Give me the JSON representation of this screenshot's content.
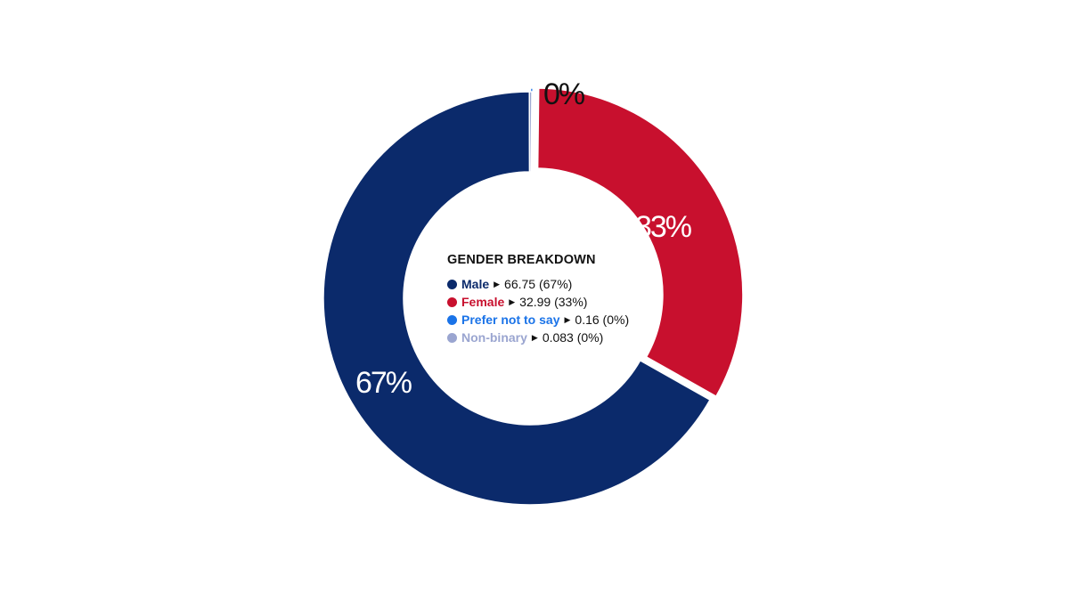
{
  "chart_data": {
    "type": "pie",
    "title": "GENDER BREAKDOWN",
    "categories": [
      "Male",
      "Female",
      "Prefer not to say",
      "Non-binary"
    ],
    "values": [
      66.75,
      32.99,
      0.16,
      0.083
    ],
    "percent_labels": [
      "67%",
      "33%",
      "0%",
      "0%"
    ],
    "legend_texts": [
      "66.75 (67%)",
      "32.99 (33%)",
      "0.16 (0%)",
      "0.083 (0%)"
    ],
    "colors": [
      "#0b2a6b",
      "#c8102e",
      "#1a73e8",
      "#9aa5d0"
    ],
    "donut": true,
    "exploded": [
      "Female",
      "Prefer not to say"
    ],
    "legend_position": "center"
  }
}
